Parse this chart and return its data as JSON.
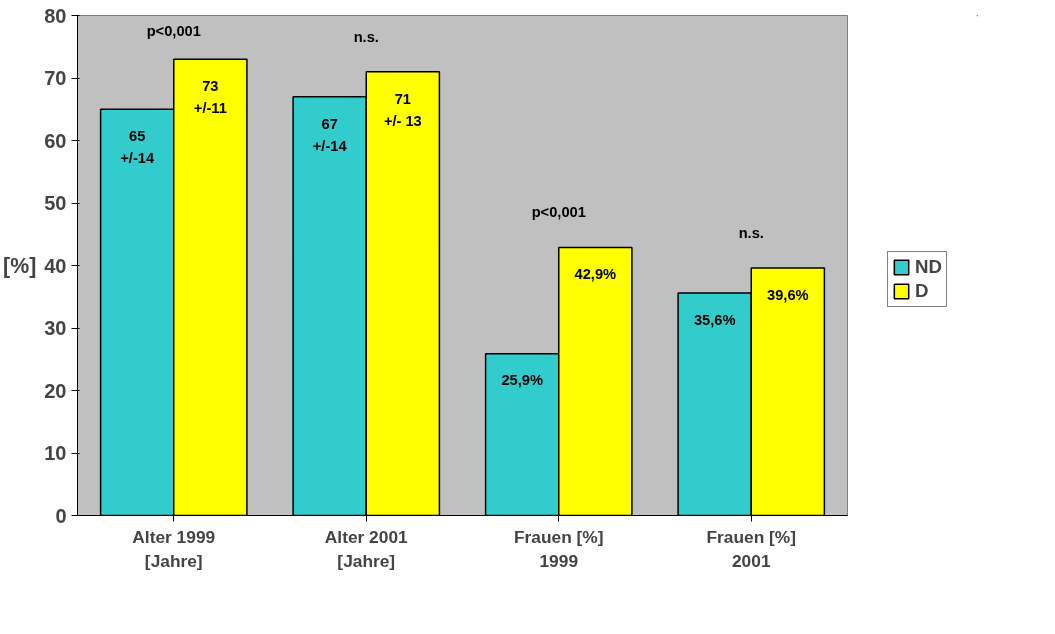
{
  "chart_data": {
    "type": "bar",
    "ylabel": "[%]",
    "categories": [
      "Alter 1999\n[Jahre]",
      "Alter 2001\n[Jahre]",
      "Frauen [%]\n1999",
      "Frauen [%]\n2001"
    ],
    "series": [
      {
        "name": "ND",
        "color": "#33cccc",
        "values": [
          65,
          67,
          25.9,
          35.6
        ],
        "value_labels": [
          "65\n+/-14",
          "67\n+/-14",
          "25,9%",
          "35,6%"
        ]
      },
      {
        "name": "D",
        "color": "#ffff00",
        "values": [
          73,
          71,
          42.9,
          39.6
        ],
        "value_labels": [
          "73\n+/-11",
          "71\n+/- 13",
          "42,9%",
          "39,6%"
        ]
      }
    ],
    "ylim": [
      0,
      80
    ],
    "yticks": [
      0,
      10,
      20,
      30,
      40,
      50,
      60,
      70,
      80
    ],
    "grid": false,
    "legend": "right",
    "annotations": [
      "p<0,001",
      "n.s.",
      "p<0,001",
      "n.s."
    ]
  }
}
